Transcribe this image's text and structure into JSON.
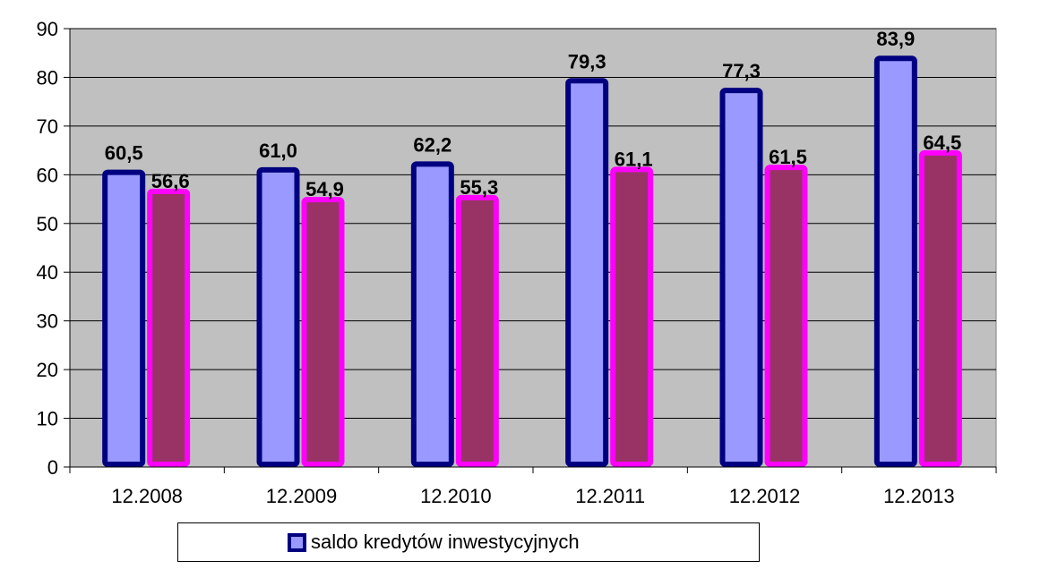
{
  "chart_data": {
    "type": "bar",
    "categories": [
      "12.2008",
      "12.2009",
      "12.2010",
      "12.2011",
      "12.2012",
      "12.2013"
    ],
    "series": [
      {
        "name": "saldo kredytów inwestycyjnych",
        "values": [
          60.5,
          61.0,
          62.2,
          79.3,
          77.3,
          83.9
        ],
        "labels": [
          "60,5",
          "61,0",
          "62,2",
          "79,3",
          "77,3",
          "83,9"
        ],
        "fill": "#9999ff",
        "stroke": "#000080"
      },
      {
        "values": [
          56.6,
          54.9,
          55.3,
          61.1,
          61.5,
          64.5
        ],
        "labels": [
          "56,6",
          "54,9",
          "55,3",
          "61,1",
          "61,5",
          "64,5"
        ],
        "fill": "#993366",
        "stroke": "#ff00ff"
      }
    ],
    "ylim": [
      0,
      90
    ],
    "yticks": [
      "0",
      "10",
      "20",
      "30",
      "40",
      "50",
      "60",
      "70",
      "80",
      "90"
    ],
    "plot_background": "#c0c0c0",
    "grid": true,
    "legend_position": "bottom"
  }
}
